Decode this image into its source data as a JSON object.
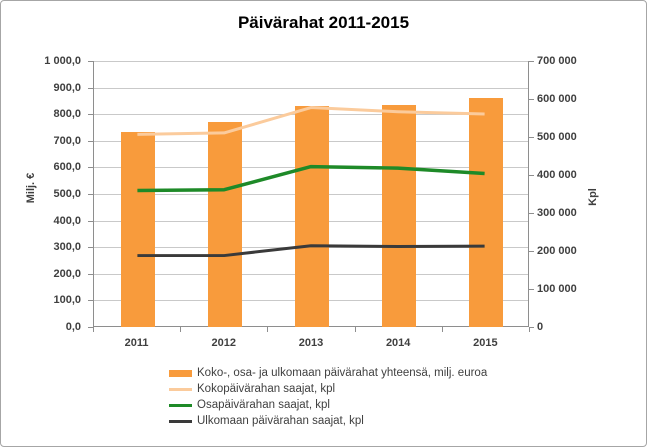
{
  "chart_data": {
    "type": "combo-bar-line",
    "title": "Päivärahat 2011-2015",
    "categories": [
      "2011",
      "2012",
      "2013",
      "2014",
      "2015"
    ],
    "bar_series": {
      "name": "Koko-, osa- ja ulkomaan päivärahat yhteensä, milj. euroa",
      "axis": "left",
      "color": "#f89b3c",
      "values": [
        735,
        770,
        831,
        835,
        860
      ]
    },
    "line_series": [
      {
        "name": "Kokopäivärahan saajat, kpl",
        "axis": "right",
        "color": "#fbcb9c",
        "stroke_width": 3,
        "values": [
          506000,
          510000,
          577000,
          566000,
          560000
        ]
      },
      {
        "name": "Osapäivärahan saajat, kpl",
        "axis": "right",
        "color": "#1e8a28",
        "stroke_width": 3.5,
        "values": [
          358000,
          360000,
          421000,
          417000,
          403000
        ]
      },
      {
        "name": "Ulkomaan päivärahan saajat, kpl",
        "axis": "right",
        "color": "#3a3a3a",
        "stroke_width": 3,
        "values": [
          186000,
          186000,
          212000,
          210000,
          211000
        ]
      }
    ],
    "left_axis": {
      "title": "Milj. €",
      "min": 0,
      "max": 1000,
      "ticks": [
        {
          "value": 1000,
          "label": "1 000,0"
        },
        {
          "value": 900,
          "label": "900,0"
        },
        {
          "value": 800,
          "label": "800,0"
        },
        {
          "value": 700,
          "label": "700,0"
        },
        {
          "value": 600,
          "label": "600,0"
        },
        {
          "value": 500,
          "label": "500,0"
        },
        {
          "value": 400,
          "label": "400,0"
        },
        {
          "value": 300,
          "label": "300,0"
        },
        {
          "value": 200,
          "label": "200,0"
        },
        {
          "value": 100,
          "label": "100,0"
        },
        {
          "value": 0,
          "label": "0,0"
        }
      ]
    },
    "right_axis": {
      "title": "Kpl",
      "min": 0,
      "max": 700000,
      "ticks": [
        {
          "value": 700000,
          "label": "700 000"
        },
        {
          "value": 600000,
          "label": "600 000"
        },
        {
          "value": 500000,
          "label": "500 000"
        },
        {
          "value": 400000,
          "label": "400 000"
        },
        {
          "value": 300000,
          "label": "300 000"
        },
        {
          "value": 200000,
          "label": "200 000"
        },
        {
          "value": 100000,
          "label": "100 000"
        },
        {
          "value": 0,
          "label": "0"
        }
      ]
    },
    "grid": true,
    "legend_position": "bottom",
    "colors": {
      "gridline": "#c9c9c9",
      "axis_line": "#8e8e8e",
      "tick_text": "#3f3f3f",
      "legend_text": "#404040",
      "title_text": "#000000",
      "frame_border": "#a6a6a6",
      "background": "#ffffff"
    }
  }
}
